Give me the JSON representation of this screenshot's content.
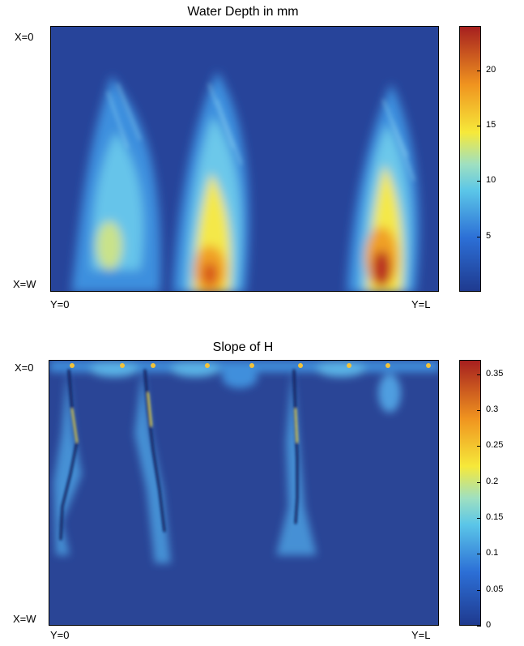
{
  "chart_data": [
    {
      "type": "heatmap",
      "title": "Water Depth in mm",
      "row_labels": [
        "X=0",
        "X=W"
      ],
      "col_labels": [
        "Y=0",
        "Y=L"
      ],
      "colorbar": {
        "ticks": [
          5,
          10,
          15,
          20
        ],
        "range": [
          0,
          24
        ]
      },
      "colormap": [
        "#1f3a8f",
        "#2c6fd6",
        "#5bc6e8",
        "#f6e93a",
        "#f0941f",
        "#a61f1f"
      ],
      "hotspots": [
        {
          "y": 0.14,
          "x": 0.82,
          "value": 10
        },
        {
          "y": 0.45,
          "x": 0.88,
          "value": 22
        },
        {
          "y": 0.87,
          "x": 0.9,
          "value": 24
        }
      ]
    },
    {
      "type": "heatmap",
      "title": "Slope of H",
      "row_labels": [
        "X=0",
        "X=W"
      ],
      "col_labels": [
        "Y=0",
        "Y=L"
      ],
      "colorbar": {
        "ticks": [
          0,
          0.05,
          0.1,
          0.15,
          0.2,
          0.25,
          0.3,
          0.35
        ],
        "range": [
          0,
          0.37
        ]
      },
      "colormap": [
        "#1f3a8f",
        "#2c6fd6",
        "#5bc6e8",
        "#f6e93a",
        "#f0941f",
        "#a61f1f"
      ],
      "channels_y": [
        0.05,
        0.24,
        0.62
      ]
    }
  ]
}
